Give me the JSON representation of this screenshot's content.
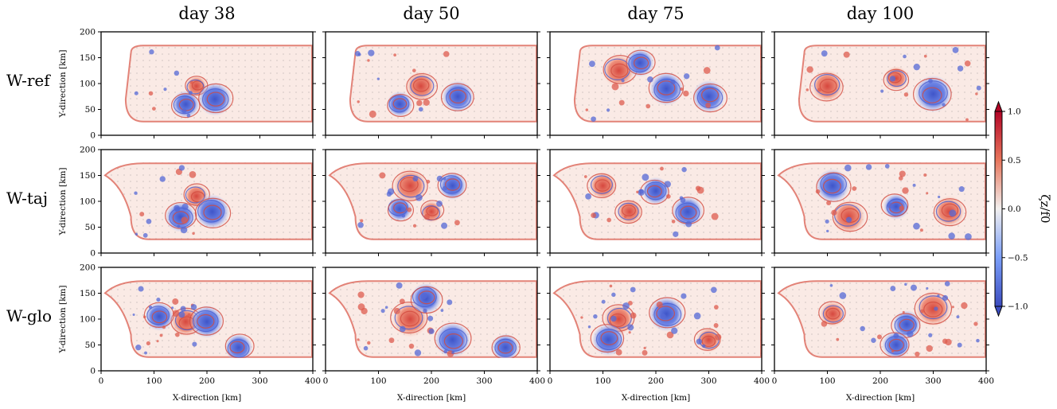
{
  "chart_data": {
    "type": "heatmap",
    "columns": [
      "day 38",
      "day 50",
      "day 75",
      "day 100"
    ],
    "rows": [
      "W-ref",
      "W-taj",
      "W-glo"
    ],
    "xlabel": "X-direction [km]",
    "ylabel": "Y-direction [km]",
    "xlim": [
      0,
      400
    ],
    "ylim": [
      0,
      200
    ],
    "xticks": [
      "0",
      "100",
      "200",
      "300",
      "400"
    ],
    "yticks": [
      "0",
      "50",
      "100",
      "150",
      "200"
    ],
    "colorbar": {
      "label": "ζz/f0",
      "ticks": [
        "1.0",
        "0.5",
        "0.0",
        "−0.5",
        "−1.0"
      ],
      "vmin": -1.0,
      "vmax": 1.0,
      "colormap": "coolwarm",
      "color_negative": "#3b4cc0",
      "color_zero": "#f7f7f7",
      "color_positive": "#b40426"
    },
    "grid": false,
    "vectors": "velocity arrows overlay"
  }
}
